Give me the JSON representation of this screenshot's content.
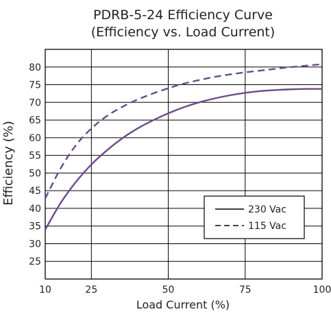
{
  "chart_data": {
    "type": "line",
    "title": "PDRB-5-24 Efficiency Curve",
    "subtitle": "(Efficiency vs. Load Current)",
    "xlabel": "Load Current (%)",
    "ylabel": "Efficiency (%)",
    "xlim": [
      10,
      100
    ],
    "ylim": [
      20,
      85
    ],
    "x_ticks": [
      10,
      25,
      50,
      75,
      100
    ],
    "y_ticks": [
      25,
      30,
      35,
      40,
      45,
      50,
      55,
      60,
      65,
      70,
      75,
      80
    ],
    "grid": true,
    "legend_position": "bottom-right",
    "series": [
      {
        "name": "230 Vac",
        "style": "solid",
        "color": "#6b4a8a",
        "x": [
          10,
          15,
          20,
          25,
          30,
          35,
          40,
          45,
          50,
          55,
          60,
          65,
          70,
          75,
          80,
          85,
          90,
          95,
          100
        ],
        "y": [
          34.0,
          41.5,
          47.5,
          52.4,
          56.4,
          59.8,
          62.6,
          64.9,
          66.9,
          68.6,
          70.0,
          71.1,
          72.0,
          72.7,
          73.2,
          73.5,
          73.7,
          73.8,
          73.8
        ]
      },
      {
        "name": "115 Vac",
        "style": "dashed",
        "color": "#6b4a8a",
        "x": [
          10,
          15,
          20,
          25,
          30,
          35,
          40,
          45,
          50,
          55,
          60,
          65,
          70,
          75,
          80,
          85,
          90,
          95,
          100
        ],
        "y": [
          42.8,
          51.3,
          57.9,
          62.6,
          66.1,
          68.7,
          70.8,
          72.5,
          74.0,
          75.3,
          76.3,
          77.2,
          77.9,
          78.5,
          79.0,
          79.5,
          80.0,
          80.4,
          80.8
        ]
      }
    ]
  }
}
